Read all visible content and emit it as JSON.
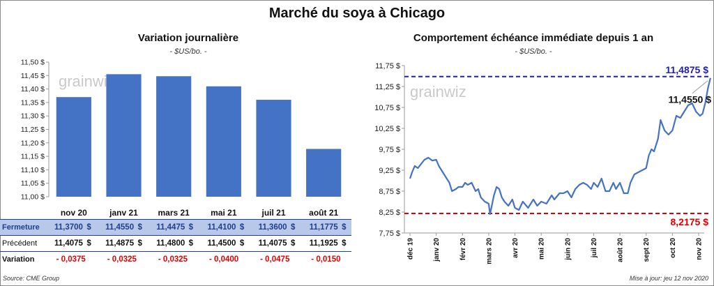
{
  "title": "Marché du soya à Chicago",
  "left_chart": {
    "subtitle": "Variation journalière",
    "unit": "- $US/bo. -",
    "watermark": "grainwiz",
    "table": {
      "row_labels": [
        "Fermeture",
        "Précédent",
        "Variation"
      ],
      "currency": "$",
      "fermeture": [
        "11,3700",
        "11,4550",
        "11,4475",
        "11,4100",
        "11,3600",
        "11,1775"
      ],
      "precedent": [
        "11,4075",
        "11,4875",
        "11,4800",
        "11,4500",
        "11,4075",
        "11,1925"
      ],
      "variation": [
        "- 0,0375",
        "- 0,0325",
        "- 0,0325",
        "- 0,0400",
        "- 0,0475",
        "- 0,0150"
      ]
    }
  },
  "right_chart": {
    "subtitle": "Comportement  échéance immédiate depuis 1 an",
    "unit": "- $US/bo. -",
    "watermark": "grainwiz"
  },
  "footer": {
    "source": "Source: CME Group",
    "updated": "Mise à jour: jeu 12 nov 2020"
  },
  "chart_data": [
    {
      "type": "bar",
      "title": "Variation journalière",
      "categories": [
        "nov 20",
        "janv 21",
        "mars 21",
        "mai 21",
        "juil 21",
        "août 21"
      ],
      "values": [
        11.37,
        11.455,
        11.4475,
        11.41,
        11.36,
        11.1775
      ],
      "ylim": [
        11.0,
        11.5
      ],
      "yticks": [
        11.0,
        11.05,
        11.1,
        11.15,
        11.2,
        11.25,
        11.3,
        11.35,
        11.4,
        11.45,
        11.5
      ],
      "ytick_labels": [
        "11,00 $",
        "11,05 $",
        "11,10 $",
        "11,15 $",
        "11,20 $",
        "11,25 $",
        "11,30 $",
        "11,35 $",
        "11,40 $",
        "11,45 $",
        "11,50 $"
      ],
      "color": "#4472c4",
      "grid": false
    },
    {
      "type": "line",
      "title": "Comportement  échéance immédiate depuis 1 an",
      "x_labels": [
        "déc 19",
        "janv 20",
        "févr 20",
        "mars 20",
        "avr 20",
        "mai 20",
        "juin 20",
        "juil 20",
        "août 20",
        "sept 20",
        "oct 20",
        "nov 20"
      ],
      "ylim": [
        7.75,
        11.75
      ],
      "yticks": [
        7.75,
        8.25,
        8.75,
        9.25,
        9.75,
        10.25,
        10.75,
        11.25,
        11.75
      ],
      "ytick_labels": [
        "7,75 $",
        "8,25 $",
        "8,75 $",
        "9,25 $",
        "9,75 $",
        "10,25 $",
        "10,75 $",
        "11,25 $",
        "11,75 $"
      ],
      "series": [
        {
          "color": "#4472c4",
          "x": [
            0,
            0.08,
            0.18,
            0.3,
            0.45,
            0.55,
            0.7,
            0.85,
            1.0,
            1.1,
            1.2,
            1.35,
            1.5,
            1.6,
            1.75,
            1.85,
            2.0,
            2.1,
            2.2,
            2.35,
            2.5,
            2.6,
            2.7,
            2.85,
            3.0,
            3.05,
            3.1,
            3.2,
            3.3,
            3.4,
            3.5,
            3.6,
            3.75,
            3.9,
            4.0,
            4.15,
            4.3,
            4.5,
            4.7,
            4.85,
            5.0,
            5.2,
            5.4,
            5.5,
            5.7,
            5.85,
            6.0,
            6.15,
            6.3,
            6.45,
            6.6,
            6.75,
            6.9,
            7.0,
            7.15,
            7.3,
            7.45,
            7.6,
            7.75,
            7.85,
            8.0,
            8.15,
            8.3,
            8.4,
            8.55,
            8.7,
            8.85,
            9.0,
            9.1,
            9.2,
            9.3,
            9.45,
            9.55,
            9.7,
            9.85,
            10.0,
            10.15,
            10.3,
            10.45,
            10.6,
            10.75,
            10.9,
            11.05,
            11.15,
            11.25,
            11.35,
            11.45
          ],
          "y": [
            9.05,
            9.2,
            9.35,
            9.3,
            9.42,
            9.5,
            9.55,
            9.48,
            9.5,
            9.35,
            9.25,
            9.1,
            8.95,
            8.75,
            8.8,
            8.85,
            8.85,
            8.95,
            8.9,
            8.95,
            8.75,
            8.8,
            8.6,
            8.5,
            8.45,
            8.2,
            8.35,
            8.65,
            8.85,
            8.8,
            8.6,
            8.5,
            8.4,
            8.55,
            8.35,
            8.3,
            8.5,
            8.35,
            8.55,
            8.4,
            8.5,
            8.45,
            8.65,
            8.55,
            8.7,
            8.7,
            8.75,
            8.6,
            8.8,
            8.9,
            8.95,
            8.9,
            8.8,
            8.95,
            8.85,
            9.05,
            8.75,
            8.75,
            8.95,
            8.8,
            8.95,
            8.7,
            8.7,
            8.95,
            9.15,
            9.2,
            9.25,
            9.3,
            9.6,
            9.75,
            9.7,
            10.0,
            10.45,
            10.2,
            10.1,
            10.2,
            10.55,
            10.5,
            10.65,
            10.8,
            10.85,
            10.65,
            10.55,
            10.6,
            10.85,
            11.2,
            11.455
          ]
        }
      ],
      "reference_lines": [
        {
          "value": 11.4875,
          "label": "11,4875  $",
          "color": "#1f1fb4",
          "style": "dashed"
        },
        {
          "value": 8.2175,
          "label": "8,2175  $",
          "color": "#e00000",
          "style": "dashed"
        }
      ],
      "annotations": [
        {
          "x": 11.45,
          "y": 11.455,
          "label": "11,4550 $",
          "color": "#111111"
        }
      ],
      "grid": false
    }
  ]
}
